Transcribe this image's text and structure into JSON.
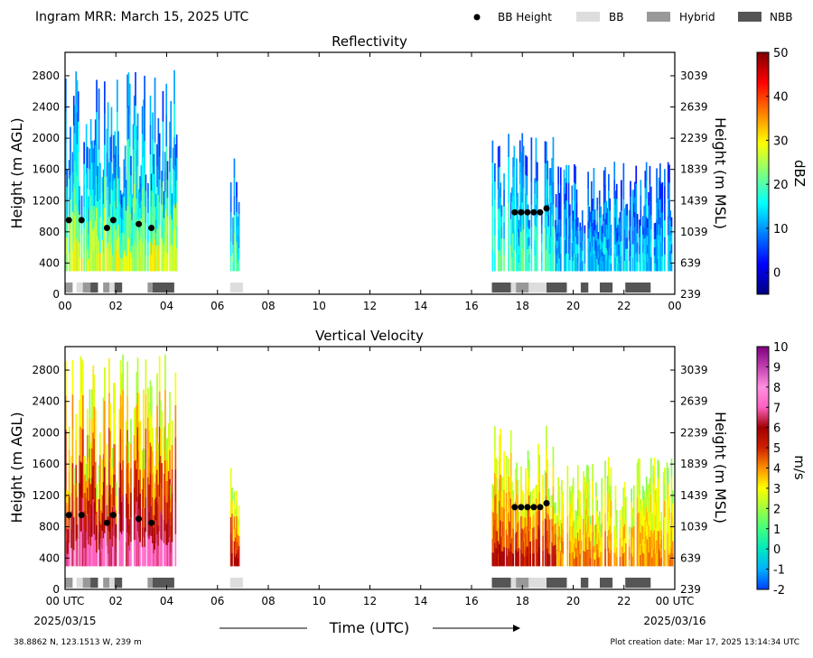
{
  "header": {
    "title": "Ingram MRR:  March 15, 2025 UTC",
    "legend": [
      {
        "label": "BB Height",
        "kind": "dot",
        "color": "#000000"
      },
      {
        "label": "BB",
        "kind": "box",
        "color": "#dddddd"
      },
      {
        "label": "Hybrid",
        "kind": "box",
        "color": "#999999"
      },
      {
        "label": "NBB",
        "kind": "box",
        "color": "#555555"
      }
    ]
  },
  "footer": {
    "location": "38.8862 N, 123.1513 W, 239 m",
    "creation": "Plot creation date: Mar 17, 2025 13:14:34 UTC",
    "xlabel": "Time (UTC)",
    "start_date": "2025/03/15",
    "end_date": "2025/03/16"
  },
  "chart_data": [
    {
      "type": "heatmap",
      "title": "Reflectivity",
      "ylabel": "Height (m AGL)",
      "y2label": "Height (m MSL)",
      "cbar_label": "dBZ",
      "xlim": [
        0,
        24
      ],
      "ylim": [
        0,
        3100
      ],
      "xticks": [
        "00",
        "02",
        "04",
        "06",
        "08",
        "10",
        "12",
        "14",
        "16",
        "18",
        "20",
        "22",
        "00"
      ],
      "yticks": [
        0,
        400,
        800,
        1200,
        1600,
        2000,
        2400,
        2800
      ],
      "y2ticks": [
        239,
        639,
        1039,
        1439,
        1839,
        2239,
        2639,
        3039
      ],
      "cbar_range": [
        -5,
        50
      ],
      "cbar_ticks": [
        0,
        10,
        20,
        30,
        40,
        50
      ],
      "cbar_colors": [
        "#00007f",
        "#0000ff",
        "#007fff",
        "#00ffff",
        "#7fff7f",
        "#ffff00",
        "#ff7f00",
        "#ff0000",
        "#7f0000"
      ],
      "echo_segments": [
        {
          "start": 0.0,
          "end": 4.4,
          "top": 2900,
          "core": 0.45
        },
        {
          "start": 6.5,
          "end": 6.9,
          "top": 1800,
          "core": 0.3
        },
        {
          "start": 16.8,
          "end": 19.3,
          "top": 2100,
          "core": 0.3
        },
        {
          "start": 19.3,
          "end": 23.9,
          "top": 1700,
          "core": 0.15
        }
      ],
      "bb_height": [
        {
          "t": 0.15,
          "h": 950
        },
        {
          "t": 0.65,
          "h": 950
        },
        {
          "t": 1.65,
          "h": 850
        },
        {
          "t": 1.9,
          "h": 950
        },
        {
          "t": 2.9,
          "h": 900
        },
        {
          "t": 3.4,
          "h": 850
        },
        {
          "t": 17.7,
          "h": 1050
        },
        {
          "t": 17.95,
          "h": 1050
        },
        {
          "t": 18.2,
          "h": 1050
        },
        {
          "t": 18.45,
          "h": 1050
        },
        {
          "t": 18.7,
          "h": 1050
        },
        {
          "t": 18.95,
          "h": 1100
        }
      ],
      "bb_type": [
        {
          "start": 0.0,
          "end": 0.3,
          "type": "Hybrid"
        },
        {
          "start": 0.45,
          "end": 0.7,
          "type": "BB"
        },
        {
          "start": 0.7,
          "end": 1.0,
          "type": "Hybrid"
        },
        {
          "start": 1.0,
          "end": 1.3,
          "type": "NBB"
        },
        {
          "start": 1.5,
          "end": 1.75,
          "type": "Hybrid"
        },
        {
          "start": 1.75,
          "end": 1.95,
          "type": "BB"
        },
        {
          "start": 1.95,
          "end": 2.25,
          "type": "NBB"
        },
        {
          "start": 3.25,
          "end": 3.45,
          "type": "Hybrid"
        },
        {
          "start": 3.45,
          "end": 4.3,
          "type": "NBB"
        },
        {
          "start": 6.5,
          "end": 7.0,
          "type": "BB"
        },
        {
          "start": 16.8,
          "end": 17.55,
          "type": "NBB"
        },
        {
          "start": 17.55,
          "end": 17.75,
          "type": "BB"
        },
        {
          "start": 17.75,
          "end": 18.25,
          "type": "Hybrid"
        },
        {
          "start": 18.25,
          "end": 18.95,
          "type": "BB"
        },
        {
          "start": 18.95,
          "end": 19.75,
          "type": "NBB"
        },
        {
          "start": 20.3,
          "end": 20.6,
          "type": "NBB"
        },
        {
          "start": 21.05,
          "end": 21.55,
          "type": "NBB"
        },
        {
          "start": 22.05,
          "end": 23.05,
          "type": "NBB"
        }
      ]
    },
    {
      "type": "heatmap",
      "title": "Vertical Velocity",
      "ylabel": "Height (m AGL)",
      "y2label": "Height (m MSL)",
      "cbar_label": "m/s",
      "xlim": [
        0,
        24
      ],
      "ylim": [
        0,
        3100
      ],
      "xticks": [
        "00 UTC",
        "02",
        "04",
        "06",
        "08",
        "10",
        "12",
        "14",
        "16",
        "18",
        "20",
        "22",
        "00 UTC"
      ],
      "yticks": [
        0,
        400,
        800,
        1200,
        1600,
        2000,
        2400,
        2800
      ],
      "y2ticks": [
        239,
        639,
        1039,
        1439,
        1839,
        2239,
        2639,
        3039
      ],
      "cbar_range": [
        -2,
        10
      ],
      "cbar_ticks": [
        -2,
        -1,
        0,
        1,
        2,
        3,
        4,
        5,
        6,
        7,
        8,
        9,
        10
      ],
      "cbar_colors": [
        "#0040ff",
        "#00b0ff",
        "#00e8c0",
        "#40ff80",
        "#a0ff40",
        "#ffff00",
        "#ff9000",
        "#d02000",
        "#a00000",
        "#ff60c0",
        "#ff90e0",
        "#c040b0",
        "#800080"
      ],
      "echo_segments": [
        {
          "start": 0.0,
          "end": 4.4,
          "top": 3000,
          "core": 0.5
        },
        {
          "start": 6.5,
          "end": 6.9,
          "top": 1800,
          "core": 0.35
        },
        {
          "start": 16.8,
          "end": 19.3,
          "top": 2100,
          "core": 0.35
        },
        {
          "start": 19.3,
          "end": 23.9,
          "top": 1700,
          "core": 0.2
        }
      ],
      "bb_height": [
        {
          "t": 0.15,
          "h": 950
        },
        {
          "t": 0.65,
          "h": 950
        },
        {
          "t": 1.65,
          "h": 850
        },
        {
          "t": 1.9,
          "h": 950
        },
        {
          "t": 2.9,
          "h": 900
        },
        {
          "t": 3.4,
          "h": 850
        },
        {
          "t": 17.7,
          "h": 1050
        },
        {
          "t": 17.95,
          "h": 1050
        },
        {
          "t": 18.2,
          "h": 1050
        },
        {
          "t": 18.45,
          "h": 1050
        },
        {
          "t": 18.7,
          "h": 1050
        },
        {
          "t": 18.95,
          "h": 1100
        }
      ],
      "bb_type": [
        {
          "start": 0.0,
          "end": 0.3,
          "type": "Hybrid"
        },
        {
          "start": 0.45,
          "end": 0.7,
          "type": "BB"
        },
        {
          "start": 0.7,
          "end": 1.0,
          "type": "Hybrid"
        },
        {
          "start": 1.0,
          "end": 1.3,
          "type": "NBB"
        },
        {
          "start": 1.5,
          "end": 1.75,
          "type": "Hybrid"
        },
        {
          "start": 1.75,
          "end": 1.95,
          "type": "BB"
        },
        {
          "start": 1.95,
          "end": 2.25,
          "type": "NBB"
        },
        {
          "start": 3.25,
          "end": 3.45,
          "type": "Hybrid"
        },
        {
          "start": 3.45,
          "end": 4.3,
          "type": "NBB"
        },
        {
          "start": 6.5,
          "end": 7.0,
          "type": "BB"
        },
        {
          "start": 16.8,
          "end": 17.55,
          "type": "NBB"
        },
        {
          "start": 17.55,
          "end": 17.75,
          "type": "BB"
        },
        {
          "start": 17.75,
          "end": 18.25,
          "type": "Hybrid"
        },
        {
          "start": 18.25,
          "end": 18.95,
          "type": "BB"
        },
        {
          "start": 18.95,
          "end": 19.75,
          "type": "NBB"
        },
        {
          "start": 20.3,
          "end": 20.6,
          "type": "NBB"
        },
        {
          "start": 21.05,
          "end": 21.55,
          "type": "NBB"
        },
        {
          "start": 22.05,
          "end": 23.05,
          "type": "NBB"
        }
      ]
    }
  ]
}
